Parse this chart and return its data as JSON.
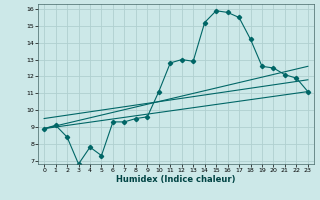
{
  "xlabel": "Humidex (Indice chaleur)",
  "bg_color": "#cce8e8",
  "grid_color": "#b0d0d0",
  "line_color": "#006666",
  "xlim": [
    -0.5,
    23.5
  ],
  "ylim": [
    6.8,
    16.3
  ],
  "yticks": [
    7,
    8,
    9,
    10,
    11,
    12,
    13,
    14,
    15,
    16
  ],
  "xticks": [
    0,
    1,
    2,
    3,
    4,
    5,
    6,
    7,
    8,
    9,
    10,
    11,
    12,
    13,
    14,
    15,
    16,
    17,
    18,
    19,
    20,
    21,
    22,
    23
  ],
  "line1_x": [
    0,
    1,
    2,
    3,
    4,
    5,
    6,
    7,
    8,
    9,
    10,
    11,
    12,
    13,
    14,
    15,
    16,
    17,
    18,
    19,
    20,
    21,
    22,
    23
  ],
  "line1_y": [
    8.9,
    9.1,
    8.4,
    6.8,
    7.8,
    7.3,
    9.3,
    9.3,
    9.5,
    9.6,
    11.1,
    12.8,
    13.0,
    12.9,
    15.2,
    15.9,
    15.8,
    15.5,
    14.2,
    12.6,
    12.5,
    12.1,
    11.9,
    11.1
  ],
  "line2_x": [
    0,
    23
  ],
  "line2_y": [
    8.9,
    11.1
  ],
  "line3_x": [
    0,
    23
  ],
  "line3_y": [
    9.5,
    11.8
  ],
  "line4_x": [
    0,
    23
  ],
  "line4_y": [
    8.9,
    12.6
  ]
}
